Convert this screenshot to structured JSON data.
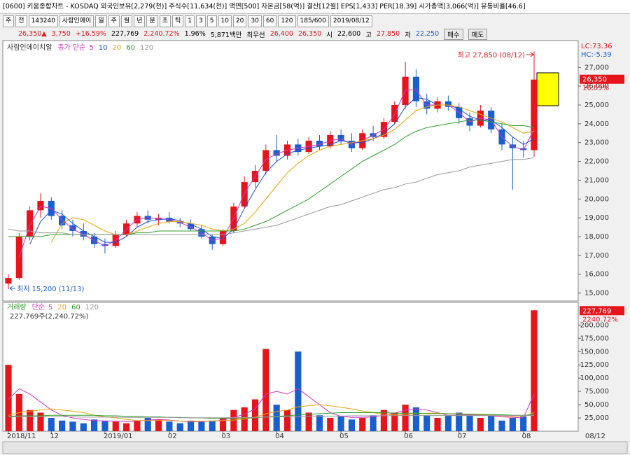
{
  "window": {
    "title": "[0600] 키움종합차트 - KOSDAQ 외국인보유[2,279(천)] 주식수[11,634(천)] 액면[500] 자본금[58(억)] 결산[12월] EPS[1,433] PER[18.39] 시가총액[3,066(억)] 유통비율[46.6]",
    "toolbar": [
      "주",
      "전",
      "143240",
      "사람인에이",
      "일",
      "주",
      "월",
      "년",
      "분",
      "초",
      "틱",
      "1",
      "3",
      "5",
      "10",
      "20",
      "30",
      "60",
      "120",
      "185/600",
      "2019/08/12"
    ],
    "info": [
      {
        "text": "26,350▲",
        "color": "#e8141b"
      },
      {
        "text": "3,750",
        "color": "#e8141b"
      },
      {
        "text": "+16.59%",
        "color": "#e8141b"
      },
      {
        "text": "227,769",
        "color": "#000000"
      },
      {
        "text": "2,240.72%",
        "color": "#e8141b"
      },
      {
        "text": "1.96%",
        "color": "#000000"
      },
      {
        "text": "5,871백만",
        "color": "#000000"
      },
      {
        "text": "최우선",
        "color": "#000000"
      },
      {
        "text": "26,400",
        "color": "#e8141b"
      },
      {
        "text": "26,350",
        "color": "#e8141b"
      },
      {
        "text": "시",
        "color": "#000000"
      },
      {
        "text": "22,600",
        "color": "#000000"
      },
      {
        "text": "고",
        "color": "#000000"
      },
      {
        "text": "27,850",
        "color": "#e8141b"
      },
      {
        "text": "저",
        "color": "#000000"
      },
      {
        "text": "22,250",
        "color": "#1a5fd0"
      }
    ],
    "buttons": [
      "매수",
      "매도"
    ]
  },
  "chart_data": [
    {
      "type": "candlestick",
      "title": "사람인에이치알",
      "legend_prefix": "종가 단순",
      "up_color": "#e8141b",
      "down_color": "#1a5fd0",
      "open": [
        15500,
        15800,
        18000,
        19400,
        19900,
        19100,
        18600,
        18300,
        18000,
        17600,
        17500,
        18100,
        18700,
        19100,
        18900,
        19000,
        18800,
        18700,
        18400,
        18000,
        17600,
        18300,
        19600,
        20900,
        21500,
        22600,
        22300,
        22900,
        22500,
        23100,
        22800,
        23400,
        23100,
        22700,
        23500,
        23300,
        24100,
        25000,
        26500,
        25200,
        24800,
        25200,
        24900,
        24300,
        23900,
        24700,
        23700,
        22900,
        22700,
        22600
      ],
      "high": [
        16000,
        18200,
        19600,
        20300,
        20100,
        19400,
        18900,
        18700,
        18200,
        17900,
        18300,
        18900,
        19300,
        19400,
        19200,
        19300,
        19000,
        18900,
        18600,
        18100,
        18400,
        19800,
        21200,
        21800,
        22900,
        23400,
        23100,
        23200,
        23300,
        23400,
        23600,
        23700,
        23500,
        23700,
        23900,
        24300,
        25200,
        27300,
        26900,
        25600,
        25400,
        25500,
        25100,
        24600,
        25000,
        24900,
        24000,
        23300,
        23100,
        27850
      ],
      "low": [
        15200,
        15700,
        17800,
        19000,
        18900,
        18400,
        18000,
        17800,
        17400,
        17100,
        17400,
        18000,
        18500,
        18700,
        18600,
        18700,
        18500,
        18300,
        17900,
        17300,
        17500,
        18200,
        19500,
        20600,
        21300,
        22000,
        22100,
        22300,
        22400,
        22600,
        22700,
        22900,
        22500,
        22600,
        23100,
        23200,
        24000,
        24800,
        24900,
        24500,
        24600,
        24700,
        24000,
        23600,
        23800,
        23500,
        22600,
        20500,
        22200,
        22250
      ],
      "close": [
        15800,
        18000,
        19400,
        19900,
        19100,
        18600,
        18300,
        18000,
        17600,
        17500,
        18100,
        18700,
        19100,
        18900,
        19000,
        18800,
        18700,
        18400,
        18000,
        17600,
        18300,
        19600,
        20900,
        21500,
        22600,
        22300,
        22900,
        22500,
        23100,
        22800,
        23400,
        23100,
        22700,
        23500,
        23300,
        24100,
        25000,
        26500,
        25200,
        24800,
        25200,
        24900,
        24300,
        23900,
        24700,
        23700,
        22900,
        22700,
        22600,
        26350
      ],
      "series": [
        {
          "name": "5",
          "color": "#d633c9",
          "values": [
            null,
            16900,
            18600,
            19600,
            19500,
            18900,
            18400,
            18100,
            17800,
            17500,
            17800,
            18400,
            18900,
            19000,
            18950,
            18900,
            18750,
            18500,
            18200,
            17800,
            17900,
            19000,
            20300,
            21200,
            22100,
            22400,
            22600,
            22700,
            22800,
            22900,
            23100,
            23200,
            22900,
            23100,
            23400,
            23700,
            24500,
            25800,
            25800,
            25000,
            25000,
            25000,
            24600,
            24100,
            24300,
            24200,
            23300,
            22800,
            22600,
            23700
          ]
        },
        {
          "name": "10",
          "color": "#1f4fd6",
          "values": [
            null,
            null,
            17600,
            18800,
            19400,
            19200,
            18700,
            18300,
            18000,
            17700,
            17700,
            18000,
            18500,
            18800,
            18900,
            18950,
            18850,
            18650,
            18400,
            18000,
            17900,
            18400,
            19500,
            20500,
            21400,
            22000,
            22400,
            22600,
            22700,
            22800,
            22900,
            23100,
            23000,
            23000,
            23200,
            23500,
            24000,
            24900,
            25400,
            25300,
            25000,
            25000,
            24800,
            24400,
            24200,
            24200,
            23800,
            23300,
            22900,
            23200
          ]
        },
        {
          "name": "20",
          "color": "#e8a600",
          "values": [
            null,
            null,
            null,
            null,
            17700,
            18700,
            19000,
            18900,
            18600,
            18300,
            18100,
            18100,
            18300,
            18500,
            18700,
            18800,
            18800,
            18700,
            18600,
            18400,
            18300,
            18400,
            18700,
            19300,
            20000,
            20700,
            21400,
            21900,
            22300,
            22600,
            22800,
            22900,
            23000,
            23100,
            23200,
            23400,
            23700,
            24200,
            24700,
            24900,
            25000,
            25000,
            24900,
            24700,
            24500,
            24300,
            24100,
            23800,
            23500,
            23600
          ]
        },
        {
          "name": "60",
          "color": "#2ca02c",
          "values": [
            18000,
            18000,
            18000,
            18000,
            18100,
            18100,
            18100,
            18100,
            18100,
            18100,
            18100,
            18100,
            18200,
            18200,
            18300,
            18300,
            18300,
            18300,
            18300,
            18300,
            18300,
            18300,
            18400,
            18600,
            18800,
            19100,
            19400,
            19700,
            20000,
            20400,
            20800,
            21200,
            21600,
            22000,
            22300,
            22600,
            22900,
            23300,
            23600,
            23800,
            23900,
            24000,
            24100,
            24200,
            24200,
            24100,
            24000,
            23900,
            23900,
            23800
          ]
        },
        {
          "name": "120",
          "color": "#999999",
          "values": [
            18400,
            18300,
            18300,
            18200,
            18200,
            18200,
            18100,
            18100,
            18100,
            18100,
            18100,
            18100,
            18100,
            18100,
            18100,
            18100,
            18100,
            18100,
            18100,
            18100,
            18100,
            18200,
            18300,
            18400,
            18500,
            18600,
            18800,
            19000,
            19200,
            19400,
            19600,
            19700,
            19900,
            20100,
            20300,
            20500,
            20600,
            20800,
            20900,
            21100,
            21300,
            21400,
            21500,
            21700,
            21800,
            21900,
            22000,
            22100,
            22100,
            22200
          ]
        }
      ],
      "ylim": [
        14650,
        28350
      ],
      "yticks": [
        {
          "value": 15000,
          "label": "15,000"
        },
        {
          "value": 16000,
          "label": "16,000"
        },
        {
          "value": 17000,
          "label": "17,000"
        },
        {
          "value": 18000,
          "label": "18,000"
        },
        {
          "value": 19000,
          "label": "19,000"
        },
        {
          "value": 20000,
          "label": "20,000"
        },
        {
          "value": 21000,
          "label": "21,000"
        },
        {
          "value": 22000,
          "label": "22,000"
        },
        {
          "value": 23000,
          "label": "23,000"
        },
        {
          "value": 24000,
          "label": "24,000"
        },
        {
          "value": 25000,
          "label": "25,000"
        },
        {
          "value": 26000,
          "label": "26,000"
        },
        {
          "value": 27000,
          "label": "27,000"
        }
      ],
      "high_note": "최고 27,850 (08/12)",
      "low_note": "최저 15,200 (11/13)",
      "indicators": [
        {
          "text": "LC:73.36",
          "color": "#e8141b"
        },
        {
          "text": "HC:-5.39",
          "color": "#1a5fd0"
        }
      ],
      "tags": [
        "26,350",
        "16.59%"
      ]
    },
    {
      "type": "bar",
      "title": "거래량",
      "legend_prefix": "단순",
      "info": "227,769주(2,240.72%)",
      "categories": [
        "2018/11",
        null,
        null,
        null,
        "12",
        null,
        null,
        null,
        null,
        "2019/01",
        null,
        null,
        null,
        null,
        null,
        "02",
        null,
        null,
        null,
        null,
        "03",
        null,
        null,
        null,
        null,
        "04",
        null,
        null,
        null,
        null,
        null,
        "05",
        null,
        null,
        null,
        null,
        null,
        "06",
        null,
        null,
        null,
        null,
        "07",
        null,
        null,
        null,
        null,
        null,
        "08",
        null
      ],
      "values": [
        125000,
        70000,
        40000,
        35000,
        25000,
        20000,
        18000,
        15000,
        22000,
        20000,
        18000,
        15000,
        20000,
        25000,
        22000,
        18000,
        15000,
        20000,
        18000,
        20000,
        25000,
        40000,
        45000,
        60000,
        155000,
        50000,
        40000,
        150000,
        35000,
        30000,
        25000,
        28000,
        22000,
        25000,
        30000,
        40000,
        35000,
        50000,
        45000,
        30000,
        25000,
        30000,
        35000,
        30000,
        25000,
        30000,
        20000,
        25000,
        28000,
        227769
      ],
      "series": [
        {
          "name": "5",
          "color": "#d633c9",
          "values": [
            60000,
            80000,
            70000,
            55000,
            40000,
            30000,
            25000,
            22000,
            20000,
            19000,
            19000,
            18000,
            19000,
            21000,
            22000,
            21000,
            19000,
            18000,
            18000,
            19000,
            21000,
            26000,
            32000,
            42000,
            70000,
            75000,
            70000,
            80000,
            65000,
            50000,
            35000,
            28000,
            26000,
            26000,
            27000,
            30000,
            34000,
            40000,
            42000,
            40000,
            35000,
            30000,
            30000,
            31000,
            30000,
            29000,
            27000,
            26000,
            25000,
            70000
          ]
        },
        {
          "name": "20",
          "color": "#e8a600",
          "values": [
            30000,
            35000,
            38000,
            40000,
            42000,
            40000,
            38000,
            35000,
            30000,
            27000,
            25000,
            22000,
            20000,
            20000,
            20000,
            20000,
            19000,
            19000,
            19000,
            19000,
            20000,
            21000,
            23000,
            26000,
            33000,
            37000,
            40000,
            46000,
            48000,
            50000,
            48000,
            45000,
            42000,
            38000,
            35000,
            32000,
            31000,
            32000,
            33000,
            34000,
            34000,
            33000,
            33000,
            32000,
            31000,
            30000,
            29000,
            28000,
            28000,
            35000
          ]
        },
        {
          "name": "60",
          "color": "#2ca02c",
          "values": [
            28000,
            29000,
            29000,
            29000,
            30000,
            30000,
            30000,
            30000,
            30000,
            29000,
            29000,
            28000,
            28000,
            27000,
            27000,
            26000,
            26000,
            25000,
            25000,
            24000,
            24000,
            24000,
            25000,
            25000,
            27000,
            28000,
            29000,
            31000,
            32000,
            33000,
            34000,
            35000,
            35000,
            35000,
            35000,
            35000,
            34000,
            34000,
            34000,
            33000,
            33000,
            33000,
            32000,
            32000,
            32000,
            31000,
            31000,
            30000,
            30000,
            31000
          ]
        },
        {
          "name": "120",
          "color": "#999999",
          "values": [
            27000,
            27000,
            27000,
            27000,
            27000,
            27000,
            27000,
            26500,
            26500,
            26500,
            26500,
            26000,
            26000,
            26000,
            26000,
            26000,
            25500,
            25500,
            25500,
            25500,
            25500,
            25500,
            26000,
            26000,
            26500,
            27000,
            27000,
            27500,
            28000,
            28000,
            28500,
            28500,
            29000,
            29000,
            29000,
            29000,
            29500,
            29500,
            29500,
            29500,
            29500,
            29500,
            29500,
            29500,
            29500,
            29500,
            29500,
            29500,
            29500,
            29500
          ]
        }
      ],
      "ylim": [
        0,
        240000
      ],
      "yticks": [
        {
          "value": 25000,
          "label": "25,000"
        },
        {
          "value": 50000,
          "label": "50,000"
        },
        {
          "value": 75000,
          "label": "75,000"
        },
        {
          "value": 100000,
          "label": "100,000"
        },
        {
          "value": 125000,
          "label": "125,000"
        },
        {
          "value": 150000,
          "label": "150,000"
        },
        {
          "value": 175000,
          "label": "175,000"
        },
        {
          "value": 200000,
          "label": "200,000"
        }
      ],
      "tags": [
        "227,769",
        "2240.72%"
      ],
      "end_label": "08/12"
    }
  ]
}
